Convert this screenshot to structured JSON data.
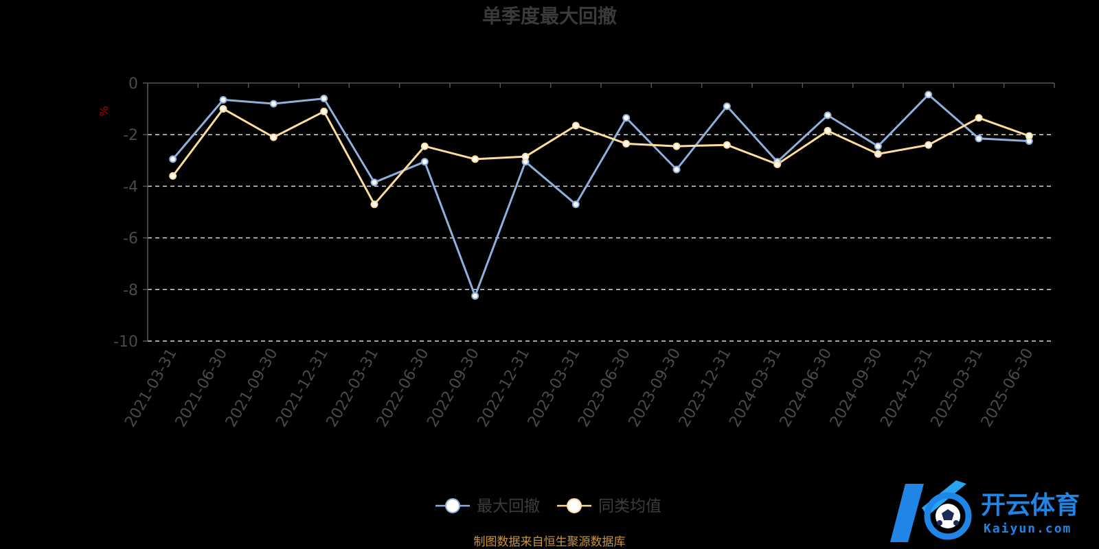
{
  "chart_data": {
    "type": "line",
    "title": "单季度最大回撤",
    "ylabel": "%",
    "ylim": [
      -10,
      0
    ],
    "yticks": [
      0,
      -2,
      -4,
      -6,
      -8,
      -10
    ],
    "grid": true,
    "legend_position": "bottom-center",
    "categories": [
      "2021-03-31",
      "2021-06-30",
      "2021-09-30",
      "2021-12-31",
      "2022-03-31",
      "2022-06-30",
      "2022-09-30",
      "2022-12-31",
      "2023-03-31",
      "2023-06-30",
      "2023-09-30",
      "2023-12-31",
      "2024-03-31",
      "2024-06-30",
      "2024-09-30",
      "2024-12-31",
      "2025-03-31",
      "2025-06-30"
    ],
    "series": [
      {
        "name": "最大回撤",
        "color": "#8fb0dc",
        "values": [
          -2.95,
          -0.65,
          -0.8,
          -0.6,
          -3.85,
          -3.05,
          -8.25,
          -3.05,
          -4.7,
          -1.35,
          -3.35,
          -0.9,
          -3.05,
          -1.25,
          -2.45,
          -0.45,
          -2.15,
          -2.25
        ]
      },
      {
        "name": "同类均值",
        "color": "#fddc9c",
        "values": [
          -3.6,
          -1.0,
          -2.1,
          -1.1,
          -4.7,
          -2.45,
          -2.95,
          -2.85,
          -1.65,
          -2.35,
          -2.45,
          -2.4,
          -3.15,
          -1.85,
          -2.75,
          -2.4,
          -1.35,
          -2.05
        ]
      }
    ]
  },
  "source_note": "制图数据来自恒生聚源数据库",
  "watermark": {
    "cn": "开云体育",
    "en": "Kaiyun.com"
  }
}
